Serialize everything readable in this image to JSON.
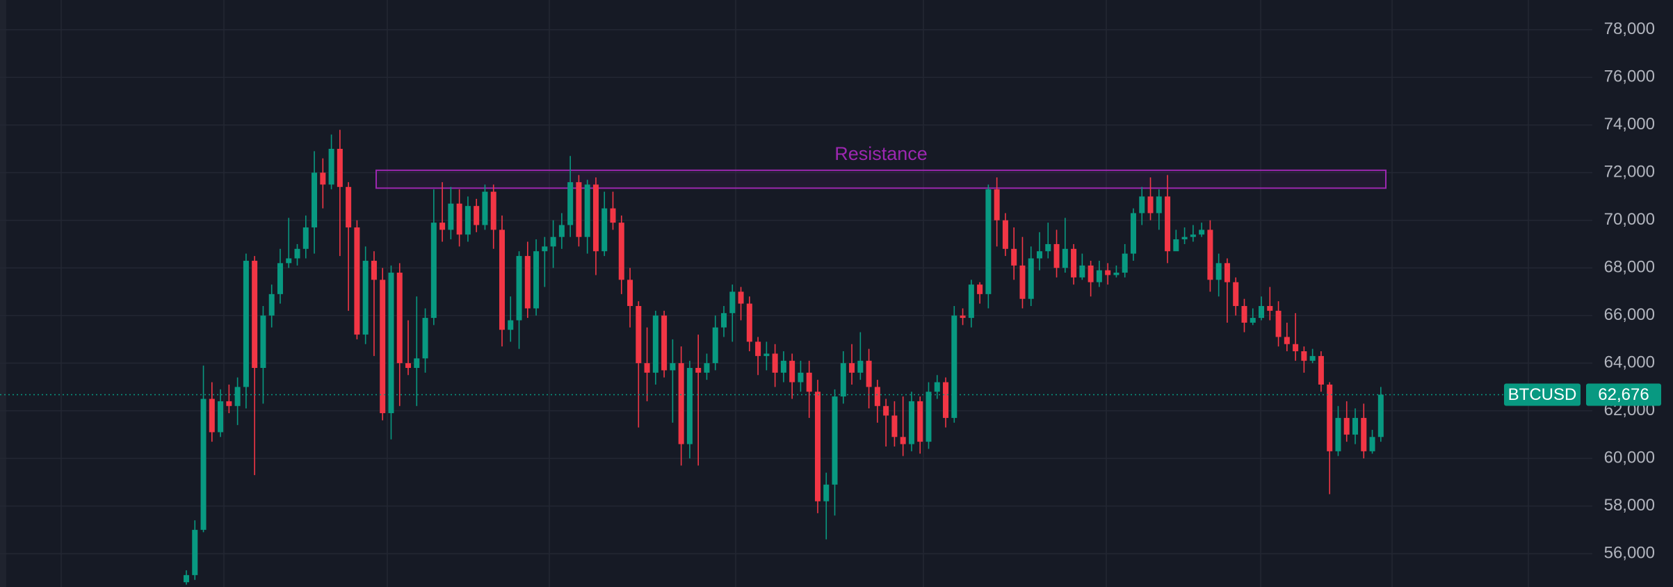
{
  "chart_data": {
    "type": "candlestick",
    "ylim": [
      54600,
      79250
    ],
    "yticks": [
      {
        "value": 56000,
        "label": "56,000"
      },
      {
        "value": 58000,
        "label": "58,000"
      },
      {
        "value": 60000,
        "label": "60,000"
      },
      {
        "value": 62000,
        "label": "62,000"
      },
      {
        "value": 64000,
        "label": "64,000"
      },
      {
        "value": 66000,
        "label": "66,000"
      },
      {
        "value": 68000,
        "label": "68,000"
      },
      {
        "value": 70000,
        "label": "70,000"
      },
      {
        "value": 72000,
        "label": "72,000"
      },
      {
        "value": 74000,
        "label": "74,000"
      },
      {
        "value": 76000,
        "label": "76,000"
      },
      {
        "value": 78000,
        "label": "78,000"
      }
    ],
    "grid": true,
    "up_color": "#089981",
    "down_color": "#f23645",
    "open": [
      54800,
      55100,
      57000,
      62500,
      61100,
      62400,
      62200,
      63000,
      68300,
      63800,
      66000,
      66900,
      68200,
      68400,
      68800,
      69700,
      72000,
      71500,
      73000,
      71400,
      69700,
      65200,
      68300,
      67500,
      61900,
      67800,
      64000,
      63800,
      64200,
      65900,
      69900,
      69600,
      70700,
      69400,
      70600,
      69800,
      71200,
      69600,
      65400,
      65800,
      68500,
      66300,
      68700,
      68900,
      69300,
      69800,
      71600,
      69300,
      71500,
      68700,
      70500,
      69900,
      67500,
      66400,
      64000,
      63600,
      66000,
      63700,
      64000,
      60600,
      63800,
      63600,
      64000,
      65500,
      66100,
      67000,
      66500,
      64900,
      64300,
      64400,
      63600,
      64100,
      63200,
      63600,
      62800,
      58200,
      58900,
      62600,
      64000,
      63600,
      64100,
      63000,
      62200,
      61800,
      60900,
      60600,
      62400,
      60700,
      62800,
      63200,
      61700,
      66000,
      65900,
      67300,
      66900,
      71300,
      70000,
      68800,
      68100,
      66700,
      68400,
      68700,
      69000,
      68000,
      68800,
      67600,
      68100,
      67400,
      67900,
      67700,
      67800,
      68600,
      70300,
      71000,
      70300,
      71000,
      68700,
      69200,
      69300,
      69400,
      69600,
      67500,
      68200,
      67400,
      66400,
      65700,
      65900,
      66400,
      66200,
      65100,
      64800,
      64500,
      64100,
      64300,
      63100,
      60300,
      61700,
      61000,
      61700,
      60300,
      60900
    ],
    "high": [
      55300,
      57400,
      63900,
      63200,
      62900,
      63100,
      63400,
      68600,
      68500,
      66400,
      67300,
      68800,
      70100,
      69000,
      70200,
      72900,
      72600,
      73600,
      73800,
      71600,
      70000,
      68900,
      68700,
      68000,
      68100,
      68200,
      65800,
      66800,
      66300,
      71300,
      71600,
      71400,
      71300,
      71000,
      70900,
      71500,
      71500,
      70200,
      66800,
      68700,
      69100,
      69200,
      69300,
      70000,
      70300,
      72700,
      71900,
      71700,
      71800,
      71200,
      71200,
      70200,
      68000,
      66600,
      65500,
      66200,
      66200,
      65000,
      64700,
      64100,
      65200,
      64400,
      66000,
      66400,
      67300,
      67200,
      66800,
      65100,
      64900,
      64800,
      64500,
      64400,
      64100,
      64100,
      63300,
      59400,
      62900,
      64500,
      64800,
      65300,
      64600,
      63300,
      62500,
      62400,
      62600,
      62800,
      62600,
      63200,
      63500,
      63400,
      66400,
      66300,
      67500,
      67400,
      71500,
      71800,
      70300,
      69700,
      69300,
      68900,
      69500,
      69900,
      69600,
      70100,
      69000,
      68600,
      68300,
      68300,
      68200,
      68100,
      69000,
      70500,
      71400,
      71800,
      71300,
      71900,
      69600,
      69700,
      69800,
      69900,
      70000,
      68600,
      68400,
      67600,
      66700,
      66300,
      66800,
      67200,
      66600,
      65700,
      66100,
      64700,
      64600,
      64500,
      63200,
      62200,
      62400,
      62100,
      62300,
      61200,
      63000
    ],
    "low": [
      54700,
      54900,
      56900,
      60700,
      60900,
      61900,
      61400,
      62100,
      59300,
      62300,
      65500,
      66500,
      68000,
      68100,
      68400,
      68600,
      70500,
      71300,
      68500,
      66200,
      65000,
      64800,
      64300,
      61600,
      60800,
      62200,
      63500,
      62200,
      63600,
      65600,
      69100,
      69200,
      68900,
      69100,
      69500,
      69600,
      68800,
      64700,
      64900,
      64600,
      65900,
      66000,
      67200,
      68000,
      68800,
      69300,
      68900,
      68600,
      67700,
      68500,
      69600,
      66900,
      65500,
      61300,
      62400,
      63100,
      63400,
      61500,
      59700,
      60000,
      59700,
      63300,
      63700,
      65100,
      64900,
      65800,
      64500,
      63500,
      63700,
      63000,
      63200,
      62500,
      62800,
      61700,
      57700,
      56600,
      57600,
      62300,
      63100,
      63300,
      62100,
      61500,
      60500,
      60500,
      60100,
      60300,
      60200,
      60400,
      62500,
      61300,
      61500,
      65600,
      65500,
      66500,
      66300,
      68900,
      68500,
      67500,
      66300,
      66400,
      67900,
      68400,
      67600,
      67800,
      67300,
      67500,
      66800,
      67200,
      67300,
      67600,
      67600,
      68300,
      69800,
      70000,
      69600,
      68200,
      68900,
      69000,
      69100,
      69300,
      67000,
      66800,
      65700,
      66000,
      65300,
      65600,
      65800,
      65800,
      64700,
      64500,
      64100,
      63600,
      64000,
      62800,
      58500,
      60100,
      60700,
      60600,
      60000,
      60200,
      60700
    ],
    "close": [
      55100,
      57000,
      62500,
      61100,
      62400,
      62200,
      63000,
      68300,
      63800,
      66000,
      66900,
      68200,
      68400,
      68800,
      69700,
      72000,
      71500,
      73000,
      71400,
      69700,
      65200,
      68300,
      67500,
      61900,
      67800,
      64000,
      63800,
      64200,
      65900,
      69900,
      69600,
      70700,
      69400,
      70600,
      69800,
      71200,
      69600,
      65400,
      65800,
      68500,
      66300,
      68700,
      68900,
      69300,
      69800,
      71600,
      69300,
      71500,
      68700,
      70500,
      69900,
      67500,
      66400,
      64000,
      63600,
      66000,
      63700,
      64000,
      60600,
      63800,
      63600,
      64000,
      65500,
      66100,
      67000,
      66500,
      64900,
      64300,
      64400,
      63600,
      64100,
      63200,
      63600,
      62800,
      58200,
      58900,
      62600,
      64000,
      63600,
      64100,
      63000,
      62200,
      61800,
      60900,
      60600,
      62400,
      60700,
      62800,
      63200,
      61700,
      66000,
      65900,
      67300,
      66900,
      71300,
      70000,
      68800,
      68100,
      66700,
      68400,
      68700,
      69000,
      68000,
      68800,
      67600,
      68100,
      67400,
      67900,
      67700,
      67800,
      68600,
      70300,
      71000,
      70300,
      71000,
      68700,
      69200,
      69300,
      69400,
      69600,
      67500,
      68200,
      67400,
      66400,
      65700,
      65900,
      66400,
      66200,
      65100,
      64800,
      64500,
      64100,
      64300,
      63100,
      60300,
      61700,
      61000,
      61700,
      60300,
      60900,
      62676
    ],
    "resistance": {
      "label": "Resistance",
      "high": 72100,
      "low": 71350,
      "color": "#9c27b0"
    },
    "last_price": {
      "symbol": "BTCUSD",
      "value": 62676,
      "label": "62,676"
    }
  }
}
